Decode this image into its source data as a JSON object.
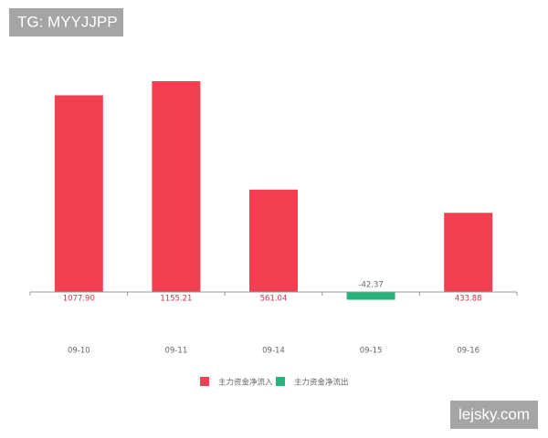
{
  "chart_data": {
    "type": "bar",
    "categories": [
      "09-10",
      "09-11",
      "09-14",
      "09-15",
      "09-16"
    ],
    "series": [
      {
        "name": "主力资金净流入",
        "color": "#f23f51",
        "values": [
          1077.9,
          1155.21,
          561.04,
          null,
          433.88
        ],
        "value_labels": [
          "1077.90",
          "1155.21",
          "561.04",
          null,
          "433.88"
        ]
      },
      {
        "name": "主力资金净流出",
        "color": "#27b37b",
        "values": [
          null,
          null,
          null,
          -42.37,
          null
        ]
      }
    ],
    "legend": "bottom"
  },
  "watermarks": [
    "TG: MYYJJPP",
    "lejsky.com"
  ]
}
